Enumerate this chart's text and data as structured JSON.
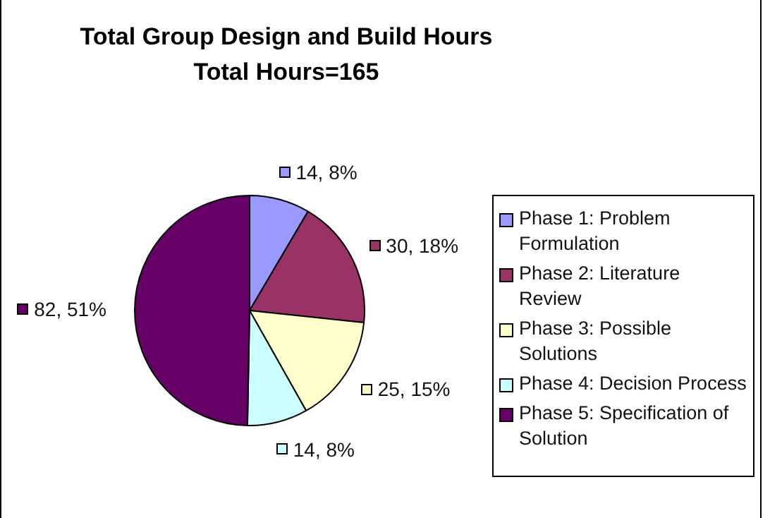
{
  "chart_data": {
    "type": "pie",
    "title": "Total Group Design and Build Hours\nTotal Hours=165",
    "categories": [
      "Phase 1: Problem Formulation",
      "Phase 2: Literature Review",
      "Phase 3: Possible Solutions",
      "Phase 4:  Decision Process",
      "Phase 5: Specification of Solution"
    ],
    "values": [
      14,
      30,
      25,
      14,
      82
    ],
    "colors": [
      "#9999ff",
      "#993366",
      "#ffffcc",
      "#ccffff",
      "#660066"
    ],
    "value_labels": [
      "14, 8%",
      "30, 18%",
      "25, 15%",
      "14, 8%",
      "82, 51%"
    ],
    "legend": "right"
  }
}
